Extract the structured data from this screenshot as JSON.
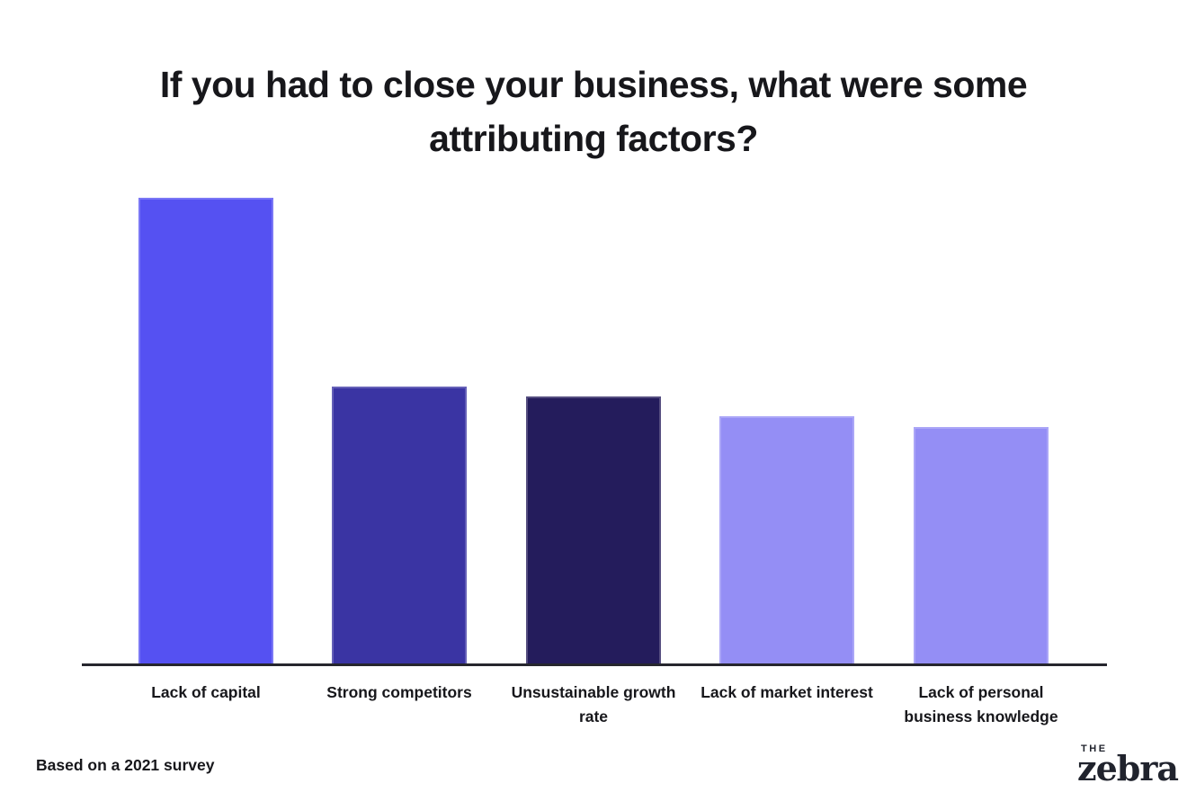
{
  "chart_data": {
    "type": "bar",
    "title": "If you had to close your business, what were some\nattributing factors?",
    "categories": [
      "Lack of capital",
      "Strong competitors",
      "Unsustainable growth\nrate",
      "Lack of market interest",
      "Lack of personal\nbusiness knowledge"
    ],
    "values": [
      47,
      28,
      27,
      25,
      24
    ],
    "bar_colors": [
      "#5551f2",
      "#3a34a3",
      "#241c5c",
      "#948ef5",
      "#948ef5"
    ],
    "xlabel": "",
    "ylabel": "",
    "ylim": [
      0,
      50
    ],
    "grid": false,
    "legend": false,
    "value_labels_shown": false
  },
  "footer": {
    "source_note": "Based on a 2021 survey"
  },
  "logo": {
    "top_text": "THE",
    "wordmark": "zebra"
  },
  "colors": {
    "background": "#ffffff",
    "axis": "#26262e",
    "text": "#17171b"
  }
}
